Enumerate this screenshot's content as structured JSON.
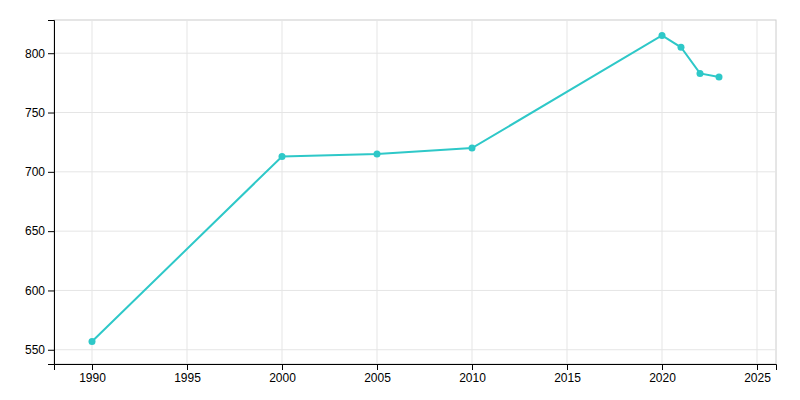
{
  "chart_data": {
    "type": "line",
    "x": [
      1990,
      2000,
      2005,
      2010,
      2020,
      2021,
      2022,
      2023
    ],
    "values": [
      557,
      713,
      715,
      720,
      815,
      805,
      783,
      780
    ],
    "color": "#2ec8c8",
    "marker": "circle",
    "xlim": [
      1988,
      2026
    ],
    "ylim": [
      538,
      828
    ],
    "xticks": [
      1990,
      1995,
      2000,
      2005,
      2010,
      2015,
      2020,
      2025
    ],
    "yticks": [
      550,
      600,
      650,
      700,
      750,
      800
    ],
    "grid": true
  }
}
